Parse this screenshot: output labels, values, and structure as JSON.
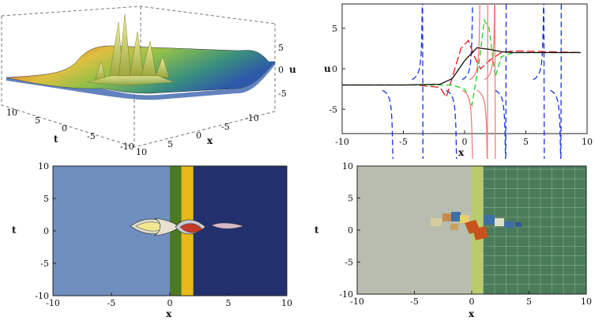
{
  "chart_data": [
    {
      "type": "surface",
      "panel": "top-left",
      "xlabel": "x",
      "ylabel": "t",
      "zlabel": "u",
      "x_ticks": [
        "10",
        "5",
        "0",
        "-5",
        "-10"
      ],
      "t_ticks": [
        "10",
        "5",
        "0",
        "-5",
        "-10"
      ],
      "z_ticks": [
        "5",
        "0",
        "-5"
      ],
      "z_levels": {
        "low": -2,
        "high": 2
      }
    },
    {
      "type": "line",
      "panel": "top-right",
      "xlabel": "x",
      "ylabel": "u",
      "xlim": [
        -10,
        10
      ],
      "ylim": [
        -8,
        8
      ],
      "x_ticks": [
        "-10",
        "-5",
        "0",
        "5",
        "10"
      ],
      "y_ticks": [
        "5",
        "0",
        "-5"
      ],
      "series": [
        {
          "color": "#1a2ee0",
          "dash": "dashed",
          "poles": [
            -5.8,
            -3.4,
            -0.6,
            0.7,
            3.4,
            6.5,
            7.9
          ]
        },
        {
          "color": "#e01a1a",
          "dash": "long-dashed",
          "points": [
            [
              -10,
              -2
            ],
            [
              -4,
              -2
            ],
            [
              -2,
              -2.3
            ],
            [
              -1.5,
              -3.5
            ],
            [
              -1,
              -1
            ],
            [
              -0.3,
              2.5
            ],
            [
              0.3,
              3.5
            ],
            [
              0.8,
              1.5
            ],
            [
              1.3,
              0
            ],
            [
              2,
              1
            ],
            [
              3,
              2
            ],
            [
              4,
              2.2
            ],
            [
              10,
              2
            ]
          ]
        },
        {
          "color": "#1fcf1f",
          "dash": "dashed",
          "points": [
            [
              -10,
              -2
            ],
            [
              -3,
              -2
            ],
            [
              -1,
              -2
            ],
            [
              0,
              -2.5
            ],
            [
              0.6,
              -4.5
            ],
            [
              1.2,
              1
            ],
            [
              1.6,
              6
            ],
            [
              2,
              5
            ],
            [
              2.5,
              -1
            ],
            [
              3,
              1.5
            ],
            [
              4,
              2
            ],
            [
              10,
              2
            ]
          ]
        },
        {
          "color": "#f08080",
          "dash": "solid",
          "poles": [
            0.7,
            1.3,
            1.9,
            2.5
          ]
        },
        {
          "color": "#111111",
          "dash": "solid",
          "points": [
            [
              -10,
              -2
            ],
            [
              -5,
              -2
            ],
            [
              -2,
              -1.9
            ],
            [
              -1,
              -1.2
            ],
            [
              0,
              1
            ],
            [
              1,
              2.6
            ],
            [
              2,
              2.4
            ],
            [
              3,
              2.1
            ],
            [
              4,
              2
            ],
            [
              10,
              2
            ]
          ]
        }
      ]
    },
    {
      "type": "heatmap",
      "panel": "bottom-left",
      "xlabel": "x",
      "ylabel": "t",
      "xlim": [
        -10,
        10
      ],
      "ylim": [
        -10,
        10
      ],
      "x_ticks": [
        "-10",
        "-5",
        "0",
        "5",
        "10"
      ],
      "y_ticks": [
        "10",
        "5",
        "0",
        "-5",
        "-10"
      ],
      "regions": [
        {
          "color": "#6f8fbe",
          "xrange": [
            -10,
            0
          ]
        },
        {
          "color": "#4d7a1f",
          "xrange": [
            0,
            1
          ]
        },
        {
          "color": "#e8b917",
          "xrange": [
            1,
            2
          ]
        },
        {
          "color": "#22306e",
          "xrange": [
            2,
            10
          ]
        }
      ]
    },
    {
      "type": "heatmap",
      "panel": "bottom-right",
      "xlabel": "x",
      "ylabel": "t",
      "xlim": [
        -10,
        10
      ],
      "ylim": [
        -10,
        10
      ],
      "x_ticks": [
        "-10",
        "-5",
        "0",
        "5",
        "10"
      ],
      "y_ticks": [
        "10",
        "5",
        "0",
        "-5",
        "-10"
      ],
      "grid": true,
      "regions": [
        {
          "color": "#b8bdb0",
          "xrange": [
            -10,
            0
          ]
        },
        {
          "color": "#b9cc6c",
          "xrange": [
            0,
            1
          ]
        },
        {
          "color": "#4a7c59",
          "xrange": [
            1,
            10
          ]
        }
      ]
    }
  ]
}
